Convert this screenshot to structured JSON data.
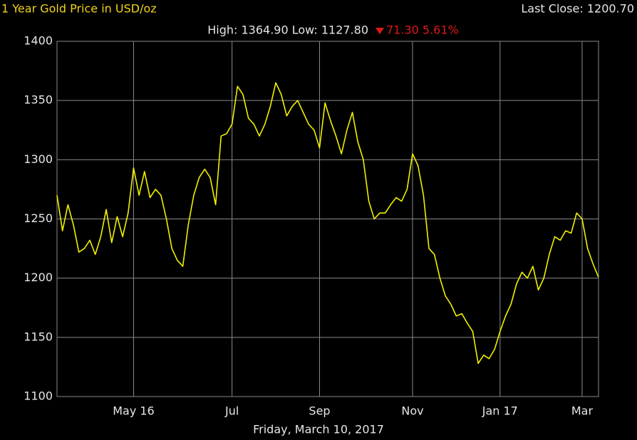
{
  "chart_data": {
    "type": "line",
    "title": "1 Year Gold Price in USD/oz",
    "last_close": "Last Close: 1200.70",
    "stats": "High: 1364.90 Low: 1127.80",
    "change": "71.30 5.61%",
    "footer": "Friday, March 10, 2017",
    "color": "#f0f000",
    "grid": true,
    "ylim": [
      1100,
      1400
    ],
    "yticks": [
      1100,
      1150,
      1200,
      1250,
      1300,
      1350,
      1400
    ],
    "categories": [
      null,
      null,
      null,
      null,
      null,
      null,
      null,
      null,
      null,
      null,
      null,
      null,
      null,
      null,
      "May 16",
      null,
      null,
      null,
      null,
      null,
      null,
      null,
      null,
      null,
      null,
      null,
      null,
      null,
      null,
      null,
      null,
      null,
      "Jul",
      null,
      null,
      null,
      null,
      null,
      null,
      null,
      null,
      null,
      null,
      null,
      null,
      null,
      null,
      null,
      "Sep",
      null,
      null,
      null,
      null,
      null,
      null,
      null,
      null,
      null,
      null,
      null,
      null,
      null,
      null,
      null,
      null,
      "Nov",
      null,
      null,
      null,
      null,
      null,
      null,
      null,
      null,
      null,
      null,
      null,
      null,
      null,
      null,
      null,
      "Jan 17",
      null,
      null,
      null,
      null,
      null,
      null,
      null,
      null,
      null,
      null,
      null,
      null,
      null,
      null,
      "Mar",
      null,
      null,
      null
    ],
    "values": [
      1270,
      1240,
      1262,
      1245,
      1222,
      1225,
      1232,
      1220,
      1235,
      1258,
      1230,
      1252,
      1235,
      1255,
      1293,
      1270,
      1290,
      1268,
      1275,
      1270,
      1250,
      1225,
      1215,
      1210,
      1245,
      1270,
      1285,
      1292,
      1285,
      1262,
      1320,
      1322,
      1330,
      1362,
      1355,
      1335,
      1330,
      1320,
      1330,
      1345,
      1365,
      1355,
      1337,
      1345,
      1350,
      1340,
      1330,
      1325,
      1310,
      1348,
      1333,
      1320,
      1305,
      1325,
      1340,
      1315,
      1300,
      1265,
      1250,
      1255,
      1255,
      1262,
      1268,
      1265,
      1275,
      1305,
      1295,
      1270,
      1225,
      1220,
      1200,
      1185,
      1178,
      1168,
      1170,
      1162,
      1155,
      1128,
      1135,
      1132,
      1140,
      1155,
      1168,
      1178,
      1195,
      1205,
      1200,
      1210,
      1190,
      1200,
      1220,
      1235,
      1232,
      1240,
      1238,
      1255,
      1250,
      1225,
      1212,
      1200.7
    ]
  }
}
